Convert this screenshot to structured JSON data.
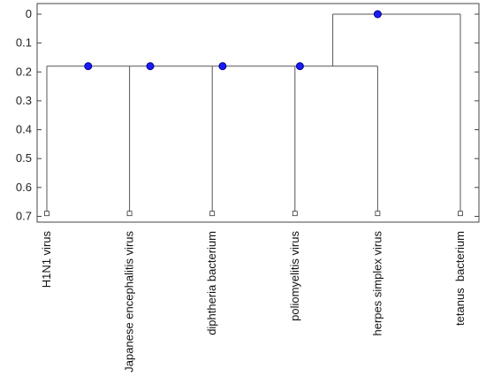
{
  "chart_data": {
    "type": "dendrogram",
    "title": "",
    "xlabel": "",
    "ylabel": "",
    "y_axis_inverted": true,
    "ylim": [
      0,
      0.72
    ],
    "y_ticks": [
      "0",
      "0.1",
      "0.2",
      "0.3",
      "0.4",
      "0.5",
      "0.6",
      "0.7"
    ],
    "leaves": [
      {
        "label": "H1N1 virus"
      },
      {
        "label": "Japanese encephalitis virus"
      },
      {
        "label": "diphtheria bacterium"
      },
      {
        "label": "poliomyelitis virus"
      },
      {
        "label": "herpes simplex virus"
      },
      {
        "label": "tetanus  bacterium"
      }
    ],
    "leaf_height": 0.69,
    "merges": [
      {
        "name": "cluster-1",
        "members": [
          "H1N1 virus",
          "Japanese encephalitis virus",
          "diphtheria bacterium",
          "poliomyelitis virus",
          "herpes simplex virus"
        ],
        "height": 0.18
      },
      {
        "name": "root",
        "members": [
          "cluster-1",
          "tetanus  bacterium"
        ],
        "height": 0.0
      }
    ],
    "node_markers": [
      {
        "x": 1.5,
        "y": 0.18
      },
      {
        "x": 2.25,
        "y": 0.18
      },
      {
        "x": 3.125,
        "y": 0.18
      },
      {
        "x": 4.06,
        "y": 0.18
      },
      {
        "x": 5.0,
        "y": 0.0
      }
    ],
    "colors": {
      "line": "#555555",
      "node_fill": "#1a1aff",
      "node_stroke": "#00007a",
      "axis": "#444444"
    }
  }
}
